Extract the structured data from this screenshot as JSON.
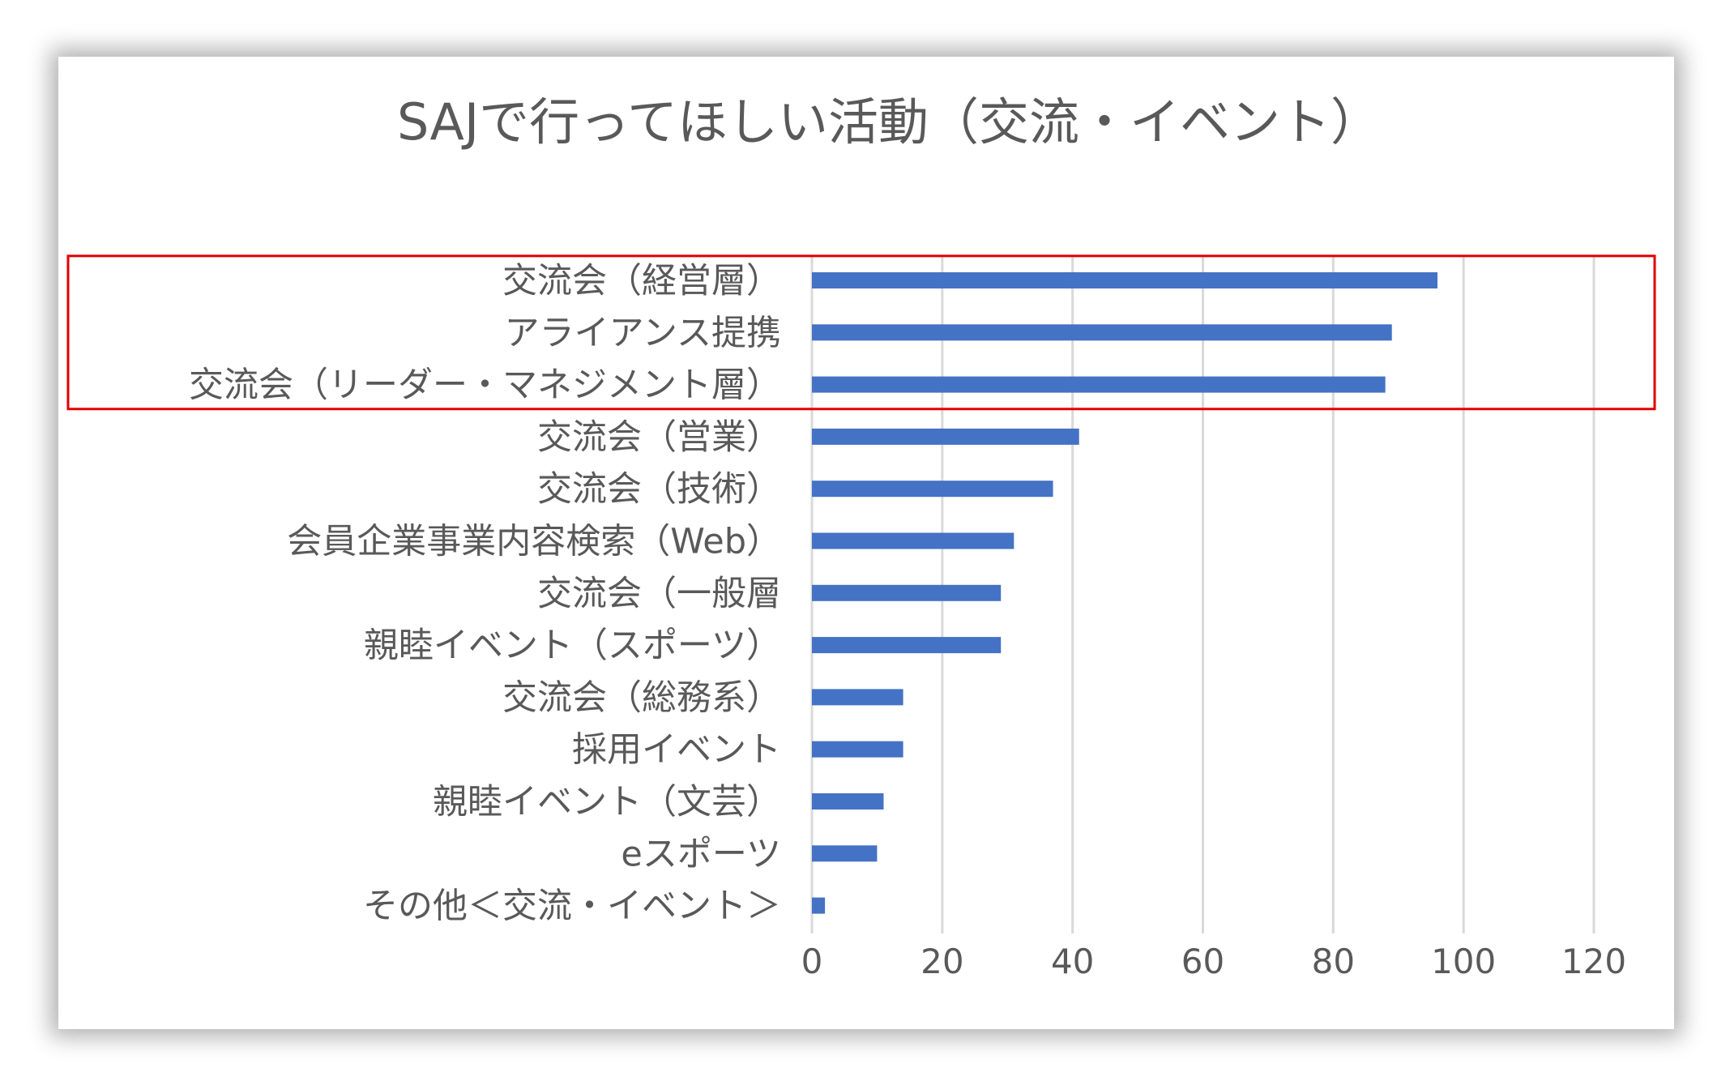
{
  "chart_data": {
    "type": "bar",
    "orientation": "horizontal",
    "title": "SAJで行ってほしい活動（交流・イベント）",
    "categories": [
      "交流会（経営層）",
      "アライアンス提携",
      "交流会（リーダー・マネジメント層）",
      "交流会（営業）",
      "交流会（技術）",
      "会員企業事業内容検索（Web）",
      "交流会（一般層",
      "親睦イベント（スポーツ）",
      "交流会（総務系）",
      "採用イベント",
      "親睦イベント（文芸）",
      "eスポーツ",
      "その他＜交流・イベント＞"
    ],
    "values": [
      96,
      89,
      88,
      41,
      37,
      31,
      29,
      29,
      14,
      14,
      11,
      10,
      2
    ],
    "xlim": [
      0,
      120
    ],
    "xticks": [
      0,
      20,
      40,
      60,
      80,
      100,
      120
    ],
    "grid": true,
    "legend": "none",
    "highlight": {
      "from_index": 0,
      "to_index": 2,
      "color": "#e00000"
    },
    "bar_color": "#4472c4"
  }
}
